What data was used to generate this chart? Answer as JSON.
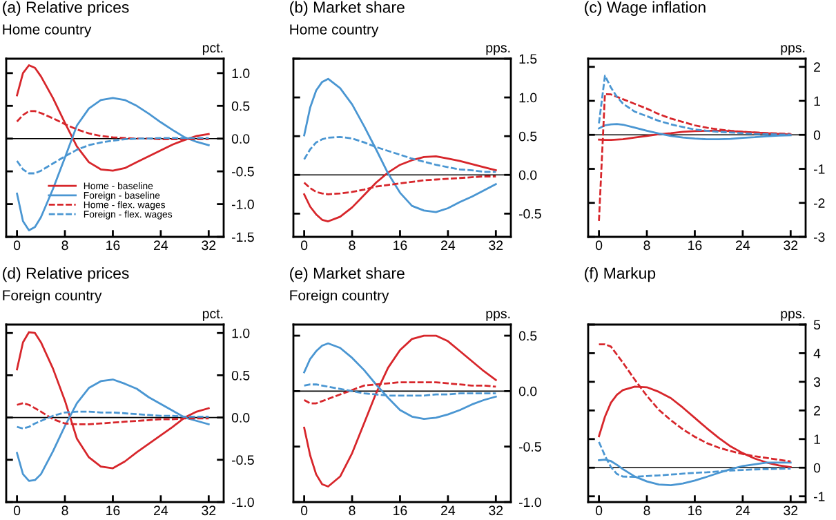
{
  "chart_data": [
    {
      "type": "line",
      "title": "(a) Relative prices",
      "subtitle": "Home country",
      "ylabel": "pct.",
      "x": [
        0,
        1,
        2,
        3,
        4,
        6,
        8,
        10,
        12,
        14,
        16,
        18,
        20,
        22,
        24,
        26,
        28,
        30,
        32
      ],
      "xlim": [
        -1.8,
        34.5
      ],
      "xticks": [
        0,
        8,
        16,
        24,
        32
      ],
      "ylim": [
        -1.5,
        1.22
      ],
      "yticks": [
        {
          "value": -1.5,
          "label": "-1.5"
        },
        {
          "value": -1.0,
          "label": "-1.0"
        },
        {
          "value": -0.5,
          "label": "-0.5"
        },
        {
          "value": 0.0,
          "label": "0.0"
        },
        {
          "value": 0.5,
          "label": "0.5"
        },
        {
          "value": 1.0,
          "label": "1.0"
        }
      ],
      "legend": "bottom",
      "ref_lines": [
        {
          "axis": "y",
          "value": 0,
          "color": "#000000"
        }
      ],
      "series": [
        {
          "name": "Home - baseline",
          "color": "#d7262b",
          "line_style": "solid",
          "values": [
            0.66,
            1.0,
            1.12,
            1.08,
            0.95,
            0.62,
            0.24,
            -0.12,
            -0.36,
            -0.47,
            -0.49,
            -0.45,
            -0.36,
            -0.27,
            -0.18,
            -0.09,
            -0.02,
            0.04,
            0.07
          ]
        },
        {
          "name": "Foreign - baseline",
          "color": "#4a96d2",
          "line_style": "solid",
          "values": [
            -0.84,
            -1.26,
            -1.4,
            -1.35,
            -1.2,
            -0.77,
            -0.29,
            0.2,
            0.46,
            0.59,
            0.62,
            0.59,
            0.5,
            0.38,
            0.25,
            0.13,
            0.02,
            -0.05,
            -0.1
          ]
        },
        {
          "name": "Home - flex. wages",
          "color": "#d7262b",
          "line_style": "dashed",
          "values": [
            0.26,
            0.36,
            0.42,
            0.42,
            0.39,
            0.31,
            0.22,
            0.14,
            0.08,
            0.04,
            0.02,
            0.01,
            0.0,
            0.0,
            -0.01,
            -0.01,
            -0.01,
            -0.01,
            -0.01
          ]
        },
        {
          "name": "Foreign - flex. wages",
          "color": "#4a96d2",
          "line_style": "dashed",
          "values": [
            -0.34,
            -0.47,
            -0.53,
            -0.53,
            -0.49,
            -0.38,
            -0.27,
            -0.17,
            -0.1,
            -0.06,
            -0.03,
            -0.01,
            0.0,
            0.0,
            0.01,
            0.01,
            0.01,
            0.01,
            0.01
          ]
        }
      ]
    },
    {
      "type": "line",
      "title": "(b) Market share",
      "subtitle": "Home country",
      "ylabel": "pps.",
      "x": [
        0,
        1,
        2,
        3,
        4,
        6,
        8,
        10,
        12,
        14,
        16,
        18,
        20,
        22,
        24,
        26,
        28,
        30,
        32
      ],
      "xlim": [
        -1.8,
        34.5
      ],
      "xticks": [
        0,
        8,
        16,
        24,
        32
      ],
      "ylim": [
        -0.8,
        1.5
      ],
      "yticks": [
        {
          "value": -0.5,
          "label": "-0.5"
        },
        {
          "value": 0.0,
          "label": "0.0"
        },
        {
          "value": 0.5,
          "label": "0.5"
        },
        {
          "value": 1.0,
          "label": "1.0"
        },
        {
          "value": 1.5,
          "label": "1.5"
        }
      ],
      "ref_lines": [
        {
          "axis": "y",
          "value": 0,
          "color": "#000000"
        }
      ],
      "series": [
        {
          "color": "#d7262b",
          "line_style": "solid",
          "values": [
            -0.25,
            -0.41,
            -0.51,
            -0.58,
            -0.6,
            -0.54,
            -0.42,
            -0.26,
            -0.1,
            0.03,
            0.13,
            0.19,
            0.23,
            0.24,
            0.21,
            0.18,
            0.14,
            0.1,
            0.06
          ]
        },
        {
          "color": "#4a96d2",
          "line_style": "solid",
          "values": [
            0.51,
            0.87,
            1.09,
            1.2,
            1.24,
            1.12,
            0.91,
            0.63,
            0.33,
            0.02,
            -0.23,
            -0.4,
            -0.46,
            -0.48,
            -0.43,
            -0.35,
            -0.28,
            -0.2,
            -0.12
          ]
        },
        {
          "color": "#d7262b",
          "line_style": "dashed",
          "values": [
            -0.1,
            -0.17,
            -0.22,
            -0.24,
            -0.25,
            -0.24,
            -0.22,
            -0.19,
            -0.15,
            -0.13,
            -0.11,
            -0.09,
            -0.07,
            -0.06,
            -0.05,
            -0.04,
            -0.03,
            -0.02,
            -0.02
          ]
        },
        {
          "color": "#4a96d2",
          "line_style": "dashed",
          "values": [
            0.2,
            0.33,
            0.42,
            0.46,
            0.48,
            0.49,
            0.47,
            0.42,
            0.36,
            0.31,
            0.26,
            0.21,
            0.17,
            0.13,
            0.1,
            0.07,
            0.06,
            0.04,
            0.04
          ]
        }
      ]
    },
    {
      "type": "line",
      "title": "(c) Wage inflation",
      "ylabel": "pps.",
      "x": [
        0,
        1,
        2,
        3,
        4,
        6,
        8,
        10,
        12,
        14,
        16,
        18,
        20,
        22,
        24,
        26,
        28,
        30,
        32
      ],
      "xlim": [
        -1.8,
        34.5
      ],
      "xticks": [
        0,
        8,
        16,
        24,
        32
      ],
      "ylim": [
        -3,
        2.24
      ],
      "yticks": [
        -3,
        -2,
        -1,
        0,
        1,
        2
      ],
      "ref_lines": [
        {
          "axis": "y",
          "value": 0,
          "color": "#000000"
        }
      ],
      "series": [
        {
          "color": "#d7262b",
          "line_style": "solid",
          "values": [
            -0.14,
            -0.15,
            -0.15,
            -0.14,
            -0.13,
            -0.08,
            -0.03,
            0.02,
            0.05,
            0.09,
            0.11,
            0.12,
            0.12,
            0.11,
            0.09,
            0.07,
            0.05,
            0.03,
            0.01
          ]
        },
        {
          "color": "#4a96d2",
          "line_style": "solid",
          "values": [
            0.19,
            0.28,
            0.31,
            0.32,
            0.3,
            0.21,
            0.12,
            0.04,
            -0.03,
            -0.08,
            -0.11,
            -0.13,
            -0.13,
            -0.12,
            -0.09,
            -0.07,
            -0.04,
            -0.02,
            -0.01
          ]
        },
        {
          "color": "#d7262b",
          "line_style": "dashed",
          "values": [
            -2.53,
            1.2,
            1.19,
            1.12,
            1.05,
            0.91,
            0.77,
            0.61,
            0.48,
            0.38,
            0.28,
            0.21,
            0.16,
            0.12,
            0.09,
            0.07,
            0.05,
            0.04,
            0.03
          ]
        },
        {
          "color": "#4a96d2",
          "line_style": "dashed",
          "values": [
            0.34,
            1.74,
            1.39,
            1.12,
            0.92,
            0.68,
            0.55,
            0.41,
            0.31,
            0.23,
            0.16,
            0.12,
            0.09,
            0.07,
            0.05,
            0.03,
            0.02,
            0.01,
            0.01
          ]
        }
      ]
    },
    {
      "type": "line",
      "title": "(d) Relative prices",
      "subtitle": "Foreign country",
      "ylabel": "pct.",
      "x": [
        0,
        1,
        2,
        3,
        4,
        6,
        8,
        10,
        12,
        14,
        16,
        18,
        20,
        22,
        24,
        26,
        28,
        30,
        32
      ],
      "xlim": [
        -1.8,
        34.5
      ],
      "xticks": [
        0,
        8,
        16,
        24,
        32
      ],
      "ylim": [
        -1.0,
        1.1
      ],
      "yticks": [
        {
          "value": -1.0,
          "label": "-1.0"
        },
        {
          "value": -0.5,
          "label": "-0.5"
        },
        {
          "value": 0.0,
          "label": "0.0"
        },
        {
          "value": 0.5,
          "label": "0.5"
        },
        {
          "value": 1.0,
          "label": "1.0"
        }
      ],
      "ref_lines": [
        {
          "axis": "y",
          "value": 0,
          "color": "#000000"
        }
      ],
      "series": [
        {
          "color": "#d7262b",
          "line_style": "solid",
          "values": [
            0.57,
            0.89,
            1.01,
            1.0,
            0.89,
            0.58,
            0.2,
            -0.25,
            -0.47,
            -0.58,
            -0.6,
            -0.52,
            -0.41,
            -0.31,
            -0.21,
            -0.11,
            0.0,
            0.07,
            0.11
          ]
        },
        {
          "color": "#4a96d2",
          "line_style": "solid",
          "values": [
            -0.42,
            -0.67,
            -0.75,
            -0.74,
            -0.67,
            -0.4,
            -0.1,
            0.17,
            0.35,
            0.43,
            0.45,
            0.4,
            0.34,
            0.24,
            0.16,
            0.08,
            0.0,
            -0.04,
            -0.08
          ]
        },
        {
          "color": "#d7262b",
          "line_style": "dashed",
          "values": [
            0.15,
            0.17,
            0.15,
            0.11,
            0.07,
            -0.02,
            -0.07,
            -0.08,
            -0.08,
            -0.07,
            -0.06,
            -0.05,
            -0.04,
            -0.03,
            -0.02,
            -0.02,
            -0.01,
            -0.01,
            -0.01
          ]
        },
        {
          "color": "#4a96d2",
          "line_style": "dashed",
          "values": [
            -0.11,
            -0.13,
            -0.11,
            -0.07,
            -0.04,
            0.02,
            0.06,
            0.07,
            0.07,
            0.06,
            0.06,
            0.05,
            0.04,
            0.03,
            0.02,
            0.02,
            0.01,
            0.01,
            0.01
          ]
        }
      ]
    },
    {
      "type": "line",
      "title": "(e) Market share",
      "subtitle": "Foreign country",
      "ylabel": "pps.",
      "x": [
        0,
        1,
        2,
        3,
        4,
        6,
        8,
        10,
        12,
        14,
        16,
        18,
        20,
        22,
        24,
        26,
        28,
        30,
        32
      ],
      "xlim": [
        -1.8,
        34.5
      ],
      "xticks": [
        0,
        8,
        16,
        24,
        32
      ],
      "ylim": [
        -1.0,
        0.6
      ],
      "yticks": [
        {
          "value": -1.0,
          "label": "-1.0"
        },
        {
          "value": -0.5,
          "label": "-0.5"
        },
        {
          "value": 0.0,
          "label": "0.0"
        },
        {
          "value": 0.5,
          "label": "0.5"
        }
      ],
      "ref_lines": [
        {
          "axis": "y",
          "value": 0,
          "color": "#000000"
        }
      ],
      "series": [
        {
          "color": "#d7262b",
          "line_style": "solid",
          "values": [
            -0.33,
            -0.58,
            -0.75,
            -0.84,
            -0.86,
            -0.77,
            -0.56,
            -0.29,
            -0.02,
            0.21,
            0.37,
            0.47,
            0.5,
            0.5,
            0.45,
            0.36,
            0.27,
            0.18,
            0.1
          ]
        },
        {
          "color": "#4a96d2",
          "line_style": "solid",
          "values": [
            0.17,
            0.29,
            0.36,
            0.41,
            0.43,
            0.39,
            0.3,
            0.19,
            0.06,
            -0.06,
            -0.17,
            -0.23,
            -0.25,
            -0.24,
            -0.21,
            -0.17,
            -0.12,
            -0.08,
            -0.05
          ]
        },
        {
          "color": "#d7262b",
          "line_style": "dashed",
          "values": [
            -0.08,
            -0.11,
            -0.11,
            -0.09,
            -0.07,
            -0.03,
            0.01,
            0.05,
            0.06,
            0.07,
            0.08,
            0.08,
            0.08,
            0.08,
            0.07,
            0.06,
            0.05,
            0.05,
            0.04
          ]
        },
        {
          "color": "#4a96d2",
          "line_style": "dashed",
          "values": [
            0.05,
            0.06,
            0.06,
            0.05,
            0.04,
            0.02,
            0.0,
            -0.02,
            -0.03,
            -0.04,
            -0.04,
            -0.04,
            -0.04,
            -0.03,
            -0.03,
            -0.02,
            -0.02,
            -0.02,
            -0.02
          ]
        }
      ]
    },
    {
      "type": "line",
      "title": "(f) Markup",
      "ylabel": "pps.",
      "x": [
        0,
        1,
        2,
        3,
        4,
        6,
        8,
        10,
        12,
        14,
        16,
        18,
        20,
        22,
        24,
        26,
        28,
        30,
        32
      ],
      "xlim": [
        -1.8,
        34.5
      ],
      "xticks": [
        0,
        8,
        16,
        24,
        32
      ],
      "ylim": [
        -1.2,
        5
      ],
      "yticks": [
        -1,
        0,
        1,
        2,
        3,
        4,
        5
      ],
      "ref_lines": [
        {
          "axis": "y",
          "value": 0,
          "color": "#000000"
        }
      ],
      "series": [
        {
          "color": "#d7262b",
          "line_style": "solid",
          "values": [
            1.1,
            1.78,
            2.27,
            2.55,
            2.71,
            2.83,
            2.81,
            2.65,
            2.43,
            2.1,
            1.74,
            1.38,
            1.04,
            0.74,
            0.51,
            0.32,
            0.18,
            0.08,
            0.02
          ]
        },
        {
          "color": "#4a96d2",
          "line_style": "solid",
          "values": [
            0.26,
            0.28,
            0.23,
            0.1,
            -0.05,
            -0.31,
            -0.48,
            -0.59,
            -0.61,
            -0.55,
            -0.45,
            -0.32,
            -0.18,
            -0.05,
            0.06,
            0.12,
            0.18,
            0.18,
            0.18
          ]
        },
        {
          "color": "#d7262b",
          "line_style": "dashed",
          "values": [
            4.31,
            4.31,
            4.23,
            3.95,
            3.67,
            3.07,
            2.51,
            2.02,
            1.66,
            1.34,
            1.08,
            0.86,
            0.7,
            0.58,
            0.48,
            0.4,
            0.34,
            0.28,
            0.22
          ]
        },
        {
          "color": "#4a96d2",
          "line_style": "dashed",
          "values": [
            0.9,
            0.42,
            0.02,
            -0.22,
            -0.31,
            -0.32,
            -0.29,
            -0.27,
            -0.24,
            -0.21,
            -0.18,
            -0.16,
            -0.13,
            -0.1,
            -0.08,
            -0.06,
            -0.05,
            -0.04,
            -0.03
          ]
        }
      ]
    }
  ]
}
